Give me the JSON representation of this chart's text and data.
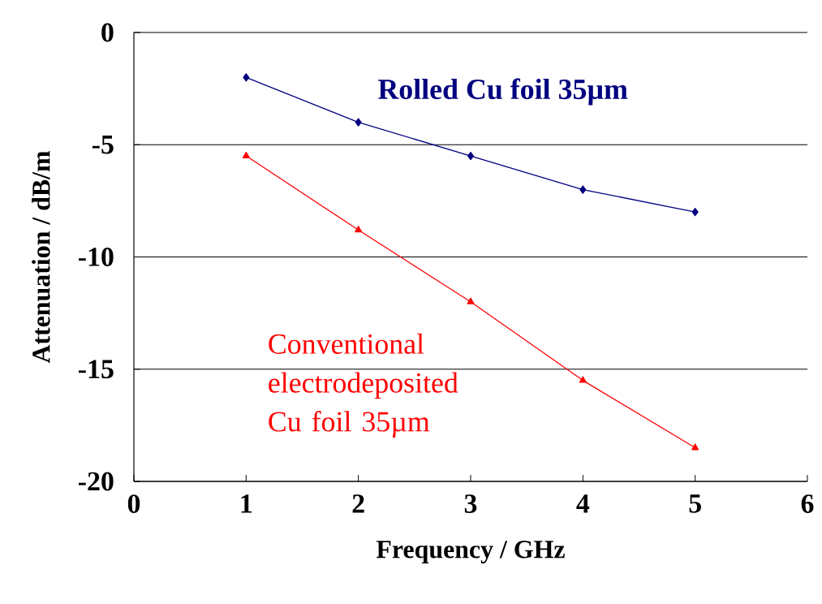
{
  "chart_data": {
    "type": "line",
    "xlabel": "Frequency   /   GHz",
    "ylabel": "Attenuation   /   dB/m",
    "x": [
      1,
      2,
      3,
      4,
      5
    ],
    "series": [
      {
        "name": "Rolled Cu foil 35µm",
        "color": "#000080",
        "marker": "diamond",
        "values": [
          -2,
          -4,
          -5.5,
          -7,
          -8
        ]
      },
      {
        "name": "Conventional electrodeposited Cu foil 35µm",
        "color": "#ff0000",
        "marker": "triangle",
        "values": [
          -5.5,
          -8.8,
          -12,
          -15.5,
          -18.5
        ]
      }
    ],
    "xlim": [
      0,
      6
    ],
    "xticks": [
      0,
      1,
      2,
      3,
      4,
      5,
      6
    ],
    "ylim": [
      -20,
      0
    ],
    "yticks": [
      -20,
      -15,
      -10,
      -5,
      0
    ],
    "grid": "y",
    "line_style": "solid"
  }
}
